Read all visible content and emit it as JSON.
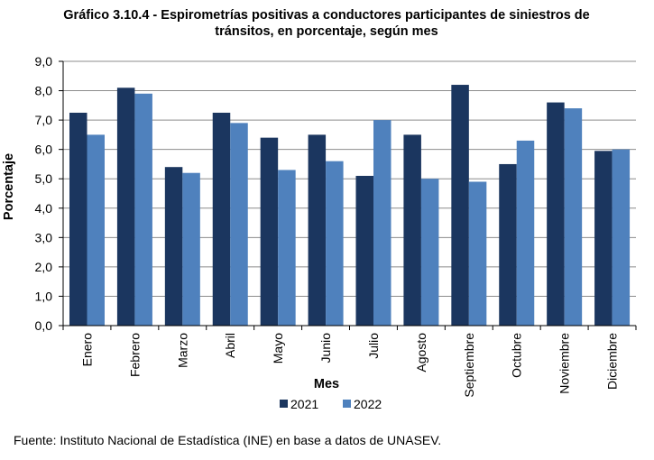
{
  "source": "Fuente: Instituto Nacional de Estadística (INE) en base a datos de UNASEV.",
  "colors": {
    "series_2021": "#1b365f",
    "series_2022": "#4f81bd",
    "grid": "#8c8c8c",
    "axis": "#000000"
  },
  "chart_data": {
    "type": "bar",
    "title_lines": [
      "Gráfico 3.10.4 - Espirometrías positivas a conductores participantes de siniestros de",
      "tránsitos, en porcentaje, según mes"
    ],
    "xlabel": "Mes",
    "ylabel": "Porcentaje",
    "ylim": [
      0,
      9
    ],
    "yticks": [
      "0,0",
      "1,0",
      "2,0",
      "3,0",
      "4,0",
      "5,0",
      "6,0",
      "7,0",
      "8,0",
      "9,0"
    ],
    "grid": true,
    "legend_position": "bottom",
    "categories": [
      "Enero",
      "Febrero",
      "Marzo",
      "Abril",
      "Mayo",
      "Junio",
      "Julio",
      "Agosto",
      "Septiembre",
      "Octubre",
      "Noviembre",
      "Diciembre"
    ],
    "series": [
      {
        "name": "2021",
        "color": "#1b365f",
        "values": [
          7.25,
          8.1,
          5.4,
          7.25,
          6.4,
          6.5,
          5.1,
          6.5,
          8.2,
          5.5,
          7.6,
          5.95
        ]
      },
      {
        "name": "2022",
        "color": "#4f81bd",
        "values": [
          6.5,
          7.9,
          5.2,
          6.9,
          5.3,
          5.6,
          7.0,
          5.0,
          4.9,
          6.3,
          7.4,
          6.0
        ]
      }
    ]
  }
}
